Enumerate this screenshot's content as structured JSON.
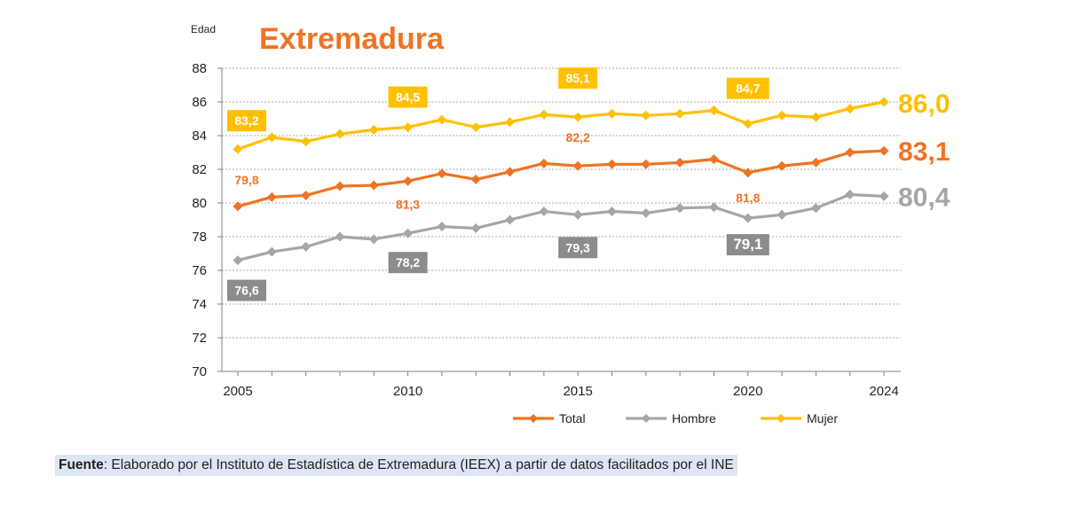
{
  "chart_data": {
    "type": "line",
    "title": "Extremadura",
    "ylabel": "Edad",
    "xlabel": "",
    "ylim": [
      70,
      88
    ],
    "yticks": [
      70,
      72,
      74,
      76,
      78,
      80,
      82,
      84,
      86,
      88
    ],
    "xlim": [
      2005,
      2024
    ],
    "xticks": [
      2005,
      2010,
      2015,
      2020,
      2024
    ],
    "grid": true,
    "legend": "bottom",
    "x": [
      2005,
      2006,
      2007,
      2008,
      2009,
      2010,
      2011,
      2012,
      2013,
      2014,
      2015,
      2016,
      2017,
      2018,
      2019,
      2020,
      2021,
      2022,
      2023,
      2024
    ],
    "series": [
      {
        "name": "Total",
        "color": "#f07323",
        "values": [
          79.8,
          80.35,
          80.45,
          81.0,
          81.05,
          81.3,
          81.75,
          81.4,
          81.85,
          82.35,
          82.2,
          82.3,
          82.3,
          82.4,
          82.6,
          81.8,
          82.2,
          82.4,
          83.0,
          83.1
        ]
      },
      {
        "name": "Hombre",
        "color": "#a6a6a6",
        "values": [
          76.6,
          77.1,
          77.4,
          78.0,
          77.85,
          78.2,
          78.6,
          78.5,
          79.0,
          79.5,
          79.3,
          79.5,
          79.4,
          79.7,
          79.75,
          79.1,
          79.3,
          79.7,
          80.5,
          80.4
        ]
      },
      {
        "name": "Mujer",
        "color": "#ffc000",
        "values": [
          83.2,
          83.9,
          83.65,
          84.1,
          84.35,
          84.5,
          84.95,
          84.5,
          84.8,
          85.25,
          85.1,
          85.3,
          85.2,
          85.3,
          85.5,
          84.7,
          85.2,
          85.1,
          85.6,
          86.0
        ]
      }
    ],
    "labels": [
      {
        "series": "Mujer",
        "x": 2005,
        "text": "83,2",
        "style": "box"
      },
      {
        "series": "Mujer",
        "x": 2010,
        "text": "84,5",
        "style": "box"
      },
      {
        "series": "Mujer",
        "x": 2015,
        "text": "85,1",
        "style": "box"
      },
      {
        "series": "Mujer",
        "x": 2020,
        "text": "84,7",
        "style": "box"
      },
      {
        "series": "Total",
        "x": 2005,
        "text": "79,8",
        "style": "plain"
      },
      {
        "series": "Total",
        "x": 2010,
        "text": "81,3",
        "style": "plain"
      },
      {
        "series": "Total",
        "x": 2015,
        "text": "82,2",
        "style": "plain"
      },
      {
        "series": "Total",
        "x": 2020,
        "text": "81,8",
        "style": "plain"
      },
      {
        "series": "Hombre",
        "x": 2005,
        "text": "76,6",
        "style": "box"
      },
      {
        "series": "Hombre",
        "x": 2010,
        "text": "78,2",
        "style": "box"
      },
      {
        "series": "Hombre",
        "x": 2015,
        "text": "79,3",
        "style": "box"
      },
      {
        "series": "Hombre",
        "x": 2020,
        "text": "79,1",
        "style": "box"
      }
    ],
    "end_labels": [
      {
        "series": "Mujer",
        "text": "86,0"
      },
      {
        "series": "Total",
        "text": "83,1"
      },
      {
        "series": "Hombre",
        "text": "80,4"
      }
    ]
  },
  "footer": {
    "bold": "Fuente",
    "text": ": Elaborado por el Instituto de Estadística de Extremadura (IEEX) a partir de datos facilitados por el INE"
  }
}
